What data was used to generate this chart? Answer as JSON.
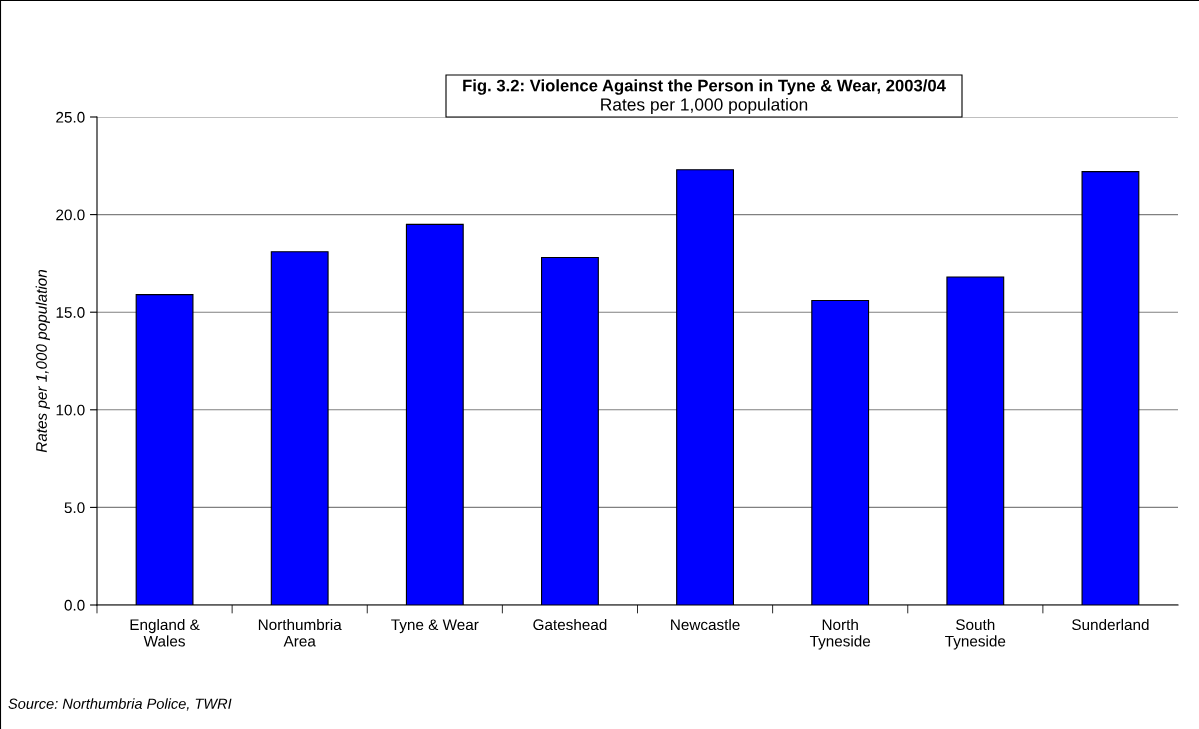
{
  "chart_data": {
    "type": "bar",
    "title": "Fig. 3.2: Violence Against the Person in Tyne & Wear, 2003/04",
    "subtitle": "Rates per 1,000 population",
    "ylabel": "Rates per 1,000 population",
    "categories": [
      "England &\nWales",
      "Northumbria\nArea",
      "Tyne & Wear",
      "Gateshead",
      "Newcastle",
      "North\nTyneside",
      "South\nTyneside",
      "Sunderland"
    ],
    "values": [
      15.9,
      18.1,
      19.5,
      17.8,
      22.3,
      15.6,
      16.8,
      22.2
    ],
    "color": "#0000ff",
    "ylim": [
      0,
      25
    ],
    "yticks": [
      {
        "value": 0,
        "label": "0.0"
      },
      {
        "value": 5,
        "label": "5.0"
      },
      {
        "value": 10,
        "label": "10.0"
      },
      {
        "value": 15,
        "label": "15.0"
      },
      {
        "value": 20,
        "label": "20.0"
      },
      {
        "value": 25,
        "label": "25.0"
      }
    ],
    "grid": "y",
    "legend": false,
    "annotations": [
      "Source: Northumbria Police, TWRI"
    ]
  }
}
